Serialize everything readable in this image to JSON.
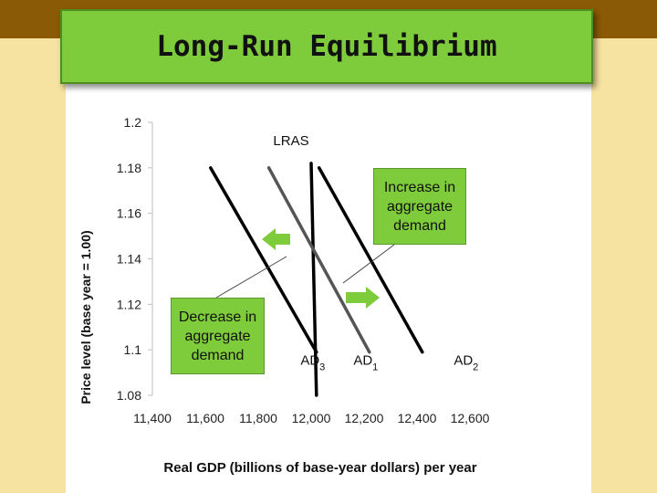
{
  "slide": {
    "title": "Long-Run Equilibrium",
    "colors": {
      "background": "#f6e3a1",
      "band": "#8a5a06",
      "accent_green": "#7ecb3b",
      "arrow_green": "#7ecb3b"
    }
  },
  "chart_data": {
    "type": "line",
    "title": "",
    "xlabel": "Real GDP (billions of base-year dollars) per year",
    "ylabel": "Price level (base year = 1.00)",
    "xlim": [
      11400,
      12600
    ],
    "ylim": [
      1.08,
      1.2
    ],
    "x_ticks": [
      "11,400",
      "11,600",
      "11,800",
      "12,000",
      "12,200",
      "12,400",
      "12,600"
    ],
    "y_ticks": [
      "1.08",
      "1.1",
      "1.12",
      "1.14",
      "1.16",
      "1.18",
      "1.2"
    ],
    "grid": false,
    "series": [
      {
        "name": "LRAS",
        "label_text": "LRAS",
        "color": "#000000",
        "points": [
          [
            12000,
            1.182
          ],
          [
            12020,
            1.08
          ]
        ]
      },
      {
        "name": "AD3",
        "label_base": "AD",
        "label_sub": "3",
        "color": "#000000",
        "points": [
          [
            11620,
            1.18
          ],
          [
            12020,
            1.099
          ]
        ]
      },
      {
        "name": "AD1",
        "label_base": "AD",
        "label_sub": "1",
        "color": "#555555",
        "points": [
          [
            11840,
            1.18
          ],
          [
            12220,
            1.099
          ]
        ]
      },
      {
        "name": "AD2",
        "label_base": "AD",
        "label_sub": "2",
        "color": "#000000",
        "points": [
          [
            12030,
            1.18
          ],
          [
            12420,
            1.099
          ]
        ]
      }
    ],
    "annotations": {
      "increase": "Increase in aggregate demand",
      "decrease": "Decrease in aggregate demand"
    }
  }
}
